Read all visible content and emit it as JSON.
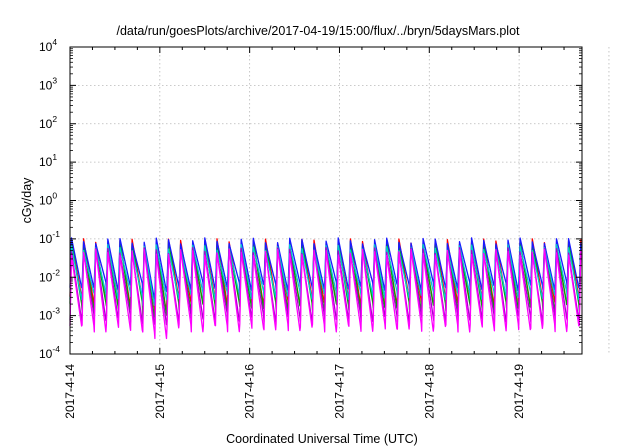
{
  "chart_data": {
    "type": "line",
    "title": "/data/run/goesPlots/archive/2017-04-19/15:00/flux/../bryn/5daysMars.plot",
    "xlabel": "Coordinated Universal Time (UTC)",
    "ylabel": "cGy/day",
    "y_scale": "log",
    "ylim_exp": [
      -4,
      4
    ],
    "xlim_days": [
      0,
      5.7
    ],
    "y_ticks": [
      {
        "base": "10",
        "exp": "4"
      },
      {
        "base": "10",
        "exp": "3"
      },
      {
        "base": "10",
        "exp": "2"
      },
      {
        "base": "10",
        "exp": "1"
      },
      {
        "base": "10",
        "exp": "0"
      },
      {
        "base": "10",
        "exp": "-1"
      },
      {
        "base": "10",
        "exp": "-2"
      },
      {
        "base": "10",
        "exp": "-3"
      },
      {
        "base": "10",
        "exp": "-4"
      }
    ],
    "x_ticks": [
      "2017-4-14",
      "2017-4-15",
      "2017-4-16",
      "2017-4-17",
      "2017-4-18",
      "2017-4-19"
    ],
    "grid": true,
    "legend": "none",
    "period_days": 0.135,
    "series": [
      {
        "color": "#ff0000",
        "peak": 0.085,
        "trough": 0.0025
      },
      {
        "color": "#00aa00",
        "peak": 0.075,
        "trough": 0.0018
      },
      {
        "color": "#1a1aff",
        "peak": 0.09,
        "trough": 0.006
      },
      {
        "color": "#00cccc",
        "peak": 0.06,
        "trough": 0.0035
      },
      {
        "color": "#aa00cc",
        "peak": 0.05,
        "trough": 0.0009
      },
      {
        "color": "#ff00ff",
        "peak": 0.045,
        "trough": 0.0005
      }
    ]
  }
}
